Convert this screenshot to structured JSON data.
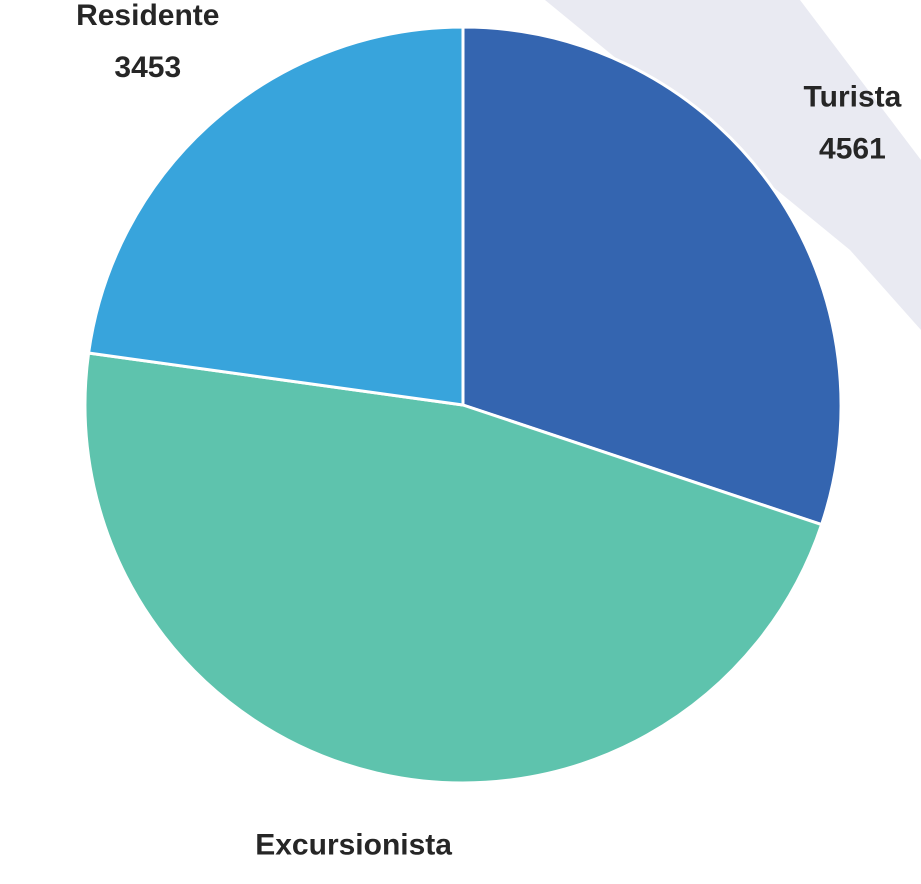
{
  "chart_data": {
    "type": "pie",
    "categories": [
      "Turista",
      "Excursionista",
      "Residente"
    ],
    "values": [
      4561,
      7127,
      3453
    ],
    "colors": [
      "#3465b0",
      "#5ec3ad",
      "#38a4dc"
    ]
  }
}
